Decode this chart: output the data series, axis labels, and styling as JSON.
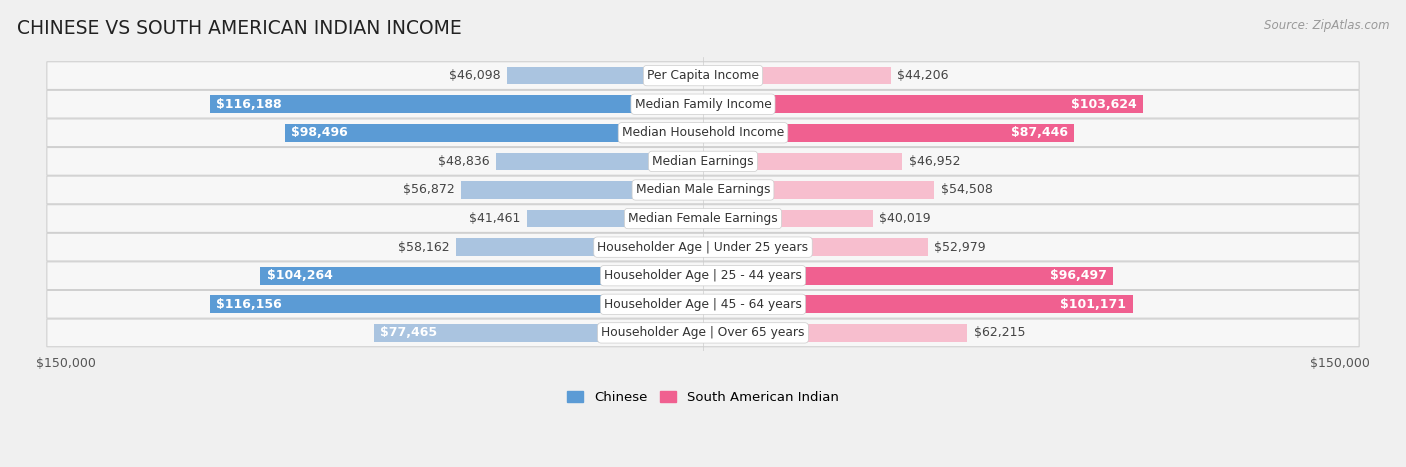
{
  "title": "CHINESE VS SOUTH AMERICAN INDIAN INCOME",
  "source": "Source: ZipAtlas.com",
  "categories": [
    "Per Capita Income",
    "Median Family Income",
    "Median Household Income",
    "Median Earnings",
    "Median Male Earnings",
    "Median Female Earnings",
    "Householder Age | Under 25 years",
    "Householder Age | 25 - 44 years",
    "Householder Age | 45 - 64 years",
    "Householder Age | Over 65 years"
  ],
  "chinese_values": [
    46098,
    116188,
    98496,
    48836,
    56872,
    41461,
    58162,
    104264,
    116156,
    77465
  ],
  "sai_values": [
    44206,
    103624,
    87446,
    46952,
    54508,
    40019,
    52979,
    96497,
    101171,
    62215
  ],
  "chinese_labels": [
    "$46,098",
    "$116,188",
    "$98,496",
    "$48,836",
    "$56,872",
    "$41,461",
    "$58,162",
    "$104,264",
    "$116,156",
    "$77,465"
  ],
  "sai_labels": [
    "$44,206",
    "$103,624",
    "$87,446",
    "$46,952",
    "$54,508",
    "$40,019",
    "$52,979",
    "$96,497",
    "$101,171",
    "$62,215"
  ],
  "max_value": 150000,
  "chinese_color_light": "#aac4e0",
  "chinese_color_dark": "#5b9bd5",
  "sai_color_light": "#f7bece",
  "sai_color_dark": "#f06090",
  "chinese_threshold": 90000,
  "sai_threshold": 85000,
  "bg_color": "#f0f0f0",
  "row_bg_color": "#f7f7f7",
  "row_border_color": "#d0d0d0",
  "bar_height": 0.62,
  "label_fontsize": 9.0,
  "cat_fontsize": 8.8,
  "title_fontsize": 13.5,
  "axis_label_fontsize": 9.0,
  "white_text_threshold_chinese": 75000,
  "white_text_threshold_sai": 75000
}
